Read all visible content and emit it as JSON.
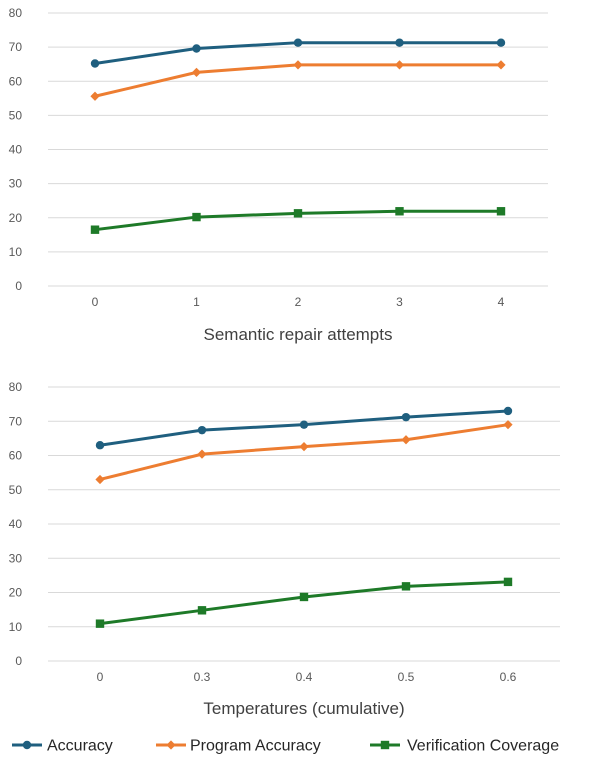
{
  "colors": {
    "accuracy": "#1F5F7F",
    "program_accuracy": "#ED7D31",
    "verification_coverage": "#1E7A28",
    "grid": "#D9D9D9",
    "text": "#595959"
  },
  "chart_data": [
    {
      "type": "line",
      "xlabel": "Semantic repair attempts",
      "ylabel": "",
      "categories": [
        "0",
        "1",
        "2",
        "3",
        "4"
      ],
      "ylim": [
        0,
        80
      ],
      "yticks": [
        0,
        10,
        20,
        30,
        40,
        50,
        60,
        70,
        80
      ],
      "grid": true,
      "series": [
        {
          "name": "Accuracy",
          "marker": "circle",
          "values": [
            65.2,
            69.6,
            71.3,
            71.3,
            71.3
          ]
        },
        {
          "name": "Program Accuracy",
          "marker": "diamond",
          "values": [
            55.6,
            62.6,
            64.8,
            64.8,
            64.8
          ]
        },
        {
          "name": "Verification Coverage",
          "marker": "square",
          "values": [
            16.5,
            20.2,
            21.3,
            21.9,
            21.9
          ]
        }
      ]
    },
    {
      "type": "line",
      "xlabel": "Temperatures (cumulative)",
      "ylabel": "",
      "categories": [
        "0",
        "0.3",
        "0.4",
        "0.5",
        "0.6"
      ],
      "ylim": [
        0,
        80
      ],
      "yticks": [
        0,
        10,
        20,
        30,
        40,
        50,
        60,
        70,
        80
      ],
      "grid": true,
      "series": [
        {
          "name": "Accuracy",
          "marker": "circle",
          "values": [
            63.0,
            67.4,
            69.0,
            71.2,
            73.0
          ]
        },
        {
          "name": "Program Accuracy",
          "marker": "diamond",
          "values": [
            53.0,
            60.4,
            62.6,
            64.6,
            69.0
          ]
        },
        {
          "name": "Verification Coverage",
          "marker": "square",
          "values": [
            10.9,
            14.8,
            18.7,
            21.8,
            23.1
          ]
        }
      ]
    }
  ],
  "legend": {
    "position": "bottom",
    "items": [
      "Accuracy",
      "Program Accuracy",
      "Verification Coverage"
    ]
  }
}
